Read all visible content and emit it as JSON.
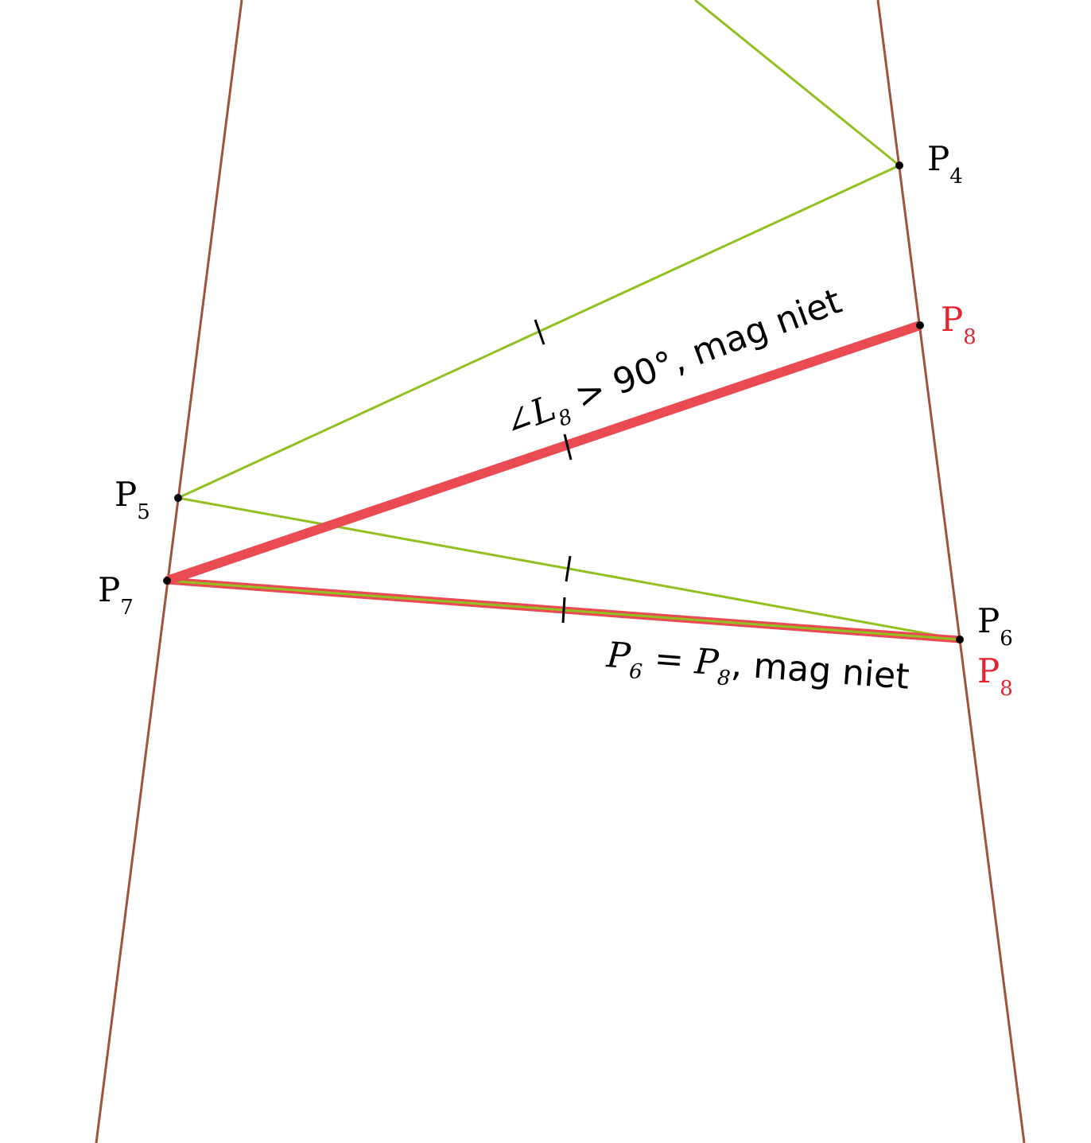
{
  "colors": {
    "boundary": "#a0523a",
    "path": "#92c020",
    "highlight": "#ea4a52",
    "label_red": "#e8222e",
    "point": "#000000"
  },
  "points": {
    "p4": {
      "main": "P",
      "sub": "4"
    },
    "p5": {
      "main": "P",
      "sub": "5"
    },
    "p6": {
      "main": "P",
      "sub": "6"
    },
    "p7": {
      "main": "P",
      "sub": "7"
    },
    "p8_upper": {
      "main": "P",
      "sub": "8"
    },
    "p8_lower": {
      "main": "P",
      "sub": "8"
    }
  },
  "annotations": {
    "angle": {
      "sym": "∠",
      "L": "L",
      "sub": "8",
      "rest": " > 90°, mag niet"
    },
    "equal": {
      "p_a": "P",
      "sub_a": "6",
      "eq": " = ",
      "p_b": "P",
      "sub_b": "8",
      "rest": ", mag niet"
    }
  }
}
